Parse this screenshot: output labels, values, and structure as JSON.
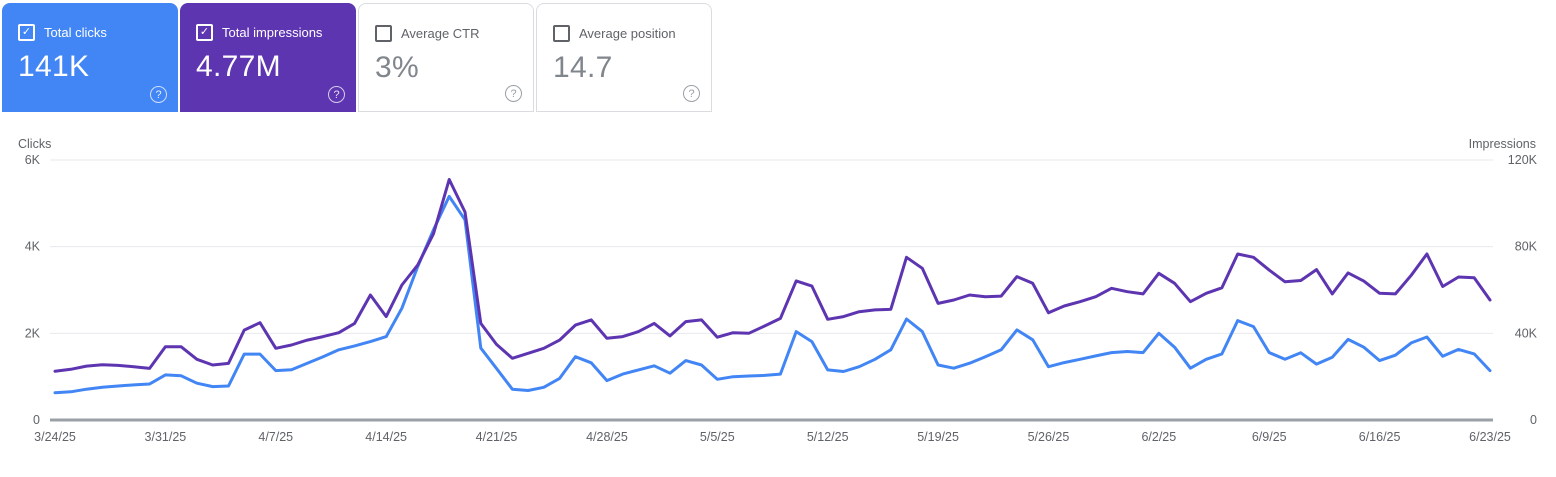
{
  "cards": [
    {
      "label": "Total clicks",
      "value": "141K",
      "checked": true,
      "bg": "#4285f4",
      "fg": "#ffffff"
    },
    {
      "label": "Total impressions",
      "value": "4.77M",
      "checked": true,
      "bg": "#5e35b1",
      "fg": "#ffffff"
    },
    {
      "label": "Average CTR",
      "value": "3%",
      "checked": false,
      "bg": "#ffffff",
      "fg": "#80868b"
    },
    {
      "label": "Average position",
      "value": "14.7",
      "checked": false,
      "bg": "#ffffff",
      "fg": "#80868b"
    }
  ],
  "glyphs": {
    "checkmark": "✓",
    "help": "?"
  },
  "colors": {
    "clicks": "#4285f4",
    "impressions": "#5e35b1",
    "gridline": "#e8eaed",
    "axis_line": "#9aa0a6",
    "axis_text": "#5f6368"
  },
  "chart_data": {
    "type": "line",
    "title": "",
    "grid": true,
    "legend_position": "none",
    "left_axis": {
      "label": "Clicks",
      "ticks": [
        "6K",
        "4K",
        "2K",
        "0"
      ],
      "max": 6000,
      "min": 0
    },
    "right_axis": {
      "label": "Impressions",
      "ticks": [
        "120K",
        "80K",
        "40K",
        "0"
      ],
      "max": 120000,
      "min": 0
    },
    "x_tick_labels": [
      "3/24/25",
      "3/31/25",
      "4/7/25",
      "4/14/25",
      "4/21/25",
      "4/28/25",
      "5/5/25",
      "5/12/25",
      "5/19/25",
      "5/26/25",
      "6/2/25",
      "6/9/25",
      "6/16/25",
      "6/23/25"
    ],
    "x_start_date": "3/24/25",
    "x_end_date": "6/23/25",
    "series": [
      {
        "name": "Total clicks",
        "axis": "left",
        "color": "#4285f4",
        "values": [
          630,
          650,
          710,
          755,
          785,
          810,
          830,
          1040,
          1020,
          850,
          770,
          785,
          1520,
          1520,
          1140,
          1160,
          1310,
          1460,
          1620,
          1710,
          1810,
          1925,
          2580,
          3540,
          4390,
          5160,
          4620,
          1660,
          1190,
          710,
          680,
          755,
          960,
          1460,
          1320,
          910,
          1060,
          1155,
          1250,
          1080,
          1370,
          1270,
          940,
          1000,
          1015,
          1030,
          1060,
          2040,
          1810,
          1155,
          1120,
          1230,
          1400,
          1620,
          2330,
          2040,
          1270,
          1195,
          1310,
          1460,
          1620,
          2080,
          1850,
          1230,
          1325,
          1400,
          1480,
          1555,
          1580,
          1555,
          2000,
          1680,
          1195,
          1400,
          1525,
          2295,
          2155,
          1555,
          1400,
          1550,
          1290,
          1450,
          1860,
          1680,
          1370,
          1495,
          1780,
          1915,
          1470,
          1630,
          1525,
          1140
        ]
      },
      {
        "name": "Total impressions",
        "axis": "right",
        "color": "#5e35b1",
        "values": [
          22500,
          23400,
          24900,
          25500,
          25200,
          24600,
          23800,
          33800,
          33800,
          28000,
          25400,
          26100,
          41500,
          44900,
          33100,
          34600,
          36900,
          38500,
          40300,
          44600,
          57700,
          47700,
          62300,
          71500,
          86000,
          111000,
          96000,
          44600,
          34900,
          28500,
          30800,
          33100,
          36900,
          43800,
          46200,
          37700,
          38500,
          40800,
          44600,
          38800,
          45400,
          46200,
          38200,
          40300,
          40000,
          43400,
          46900,
          64200,
          61800,
          46500,
          47700,
          50000,
          50800,
          51100,
          75100,
          70000,
          53800,
          55400,
          57700,
          56900,
          57200,
          66200,
          63100,
          49500,
          52600,
          54600,
          56900,
          60800,
          59200,
          58200,
          67700,
          63100,
          54600,
          58500,
          61000,
          76600,
          75100,
          69200,
          63800,
          64400,
          69400,
          58200,
          67900,
          64100,
          58500,
          58200,
          66800,
          76600,
          61600,
          66000,
          65700,
          55400
        ]
      }
    ]
  }
}
